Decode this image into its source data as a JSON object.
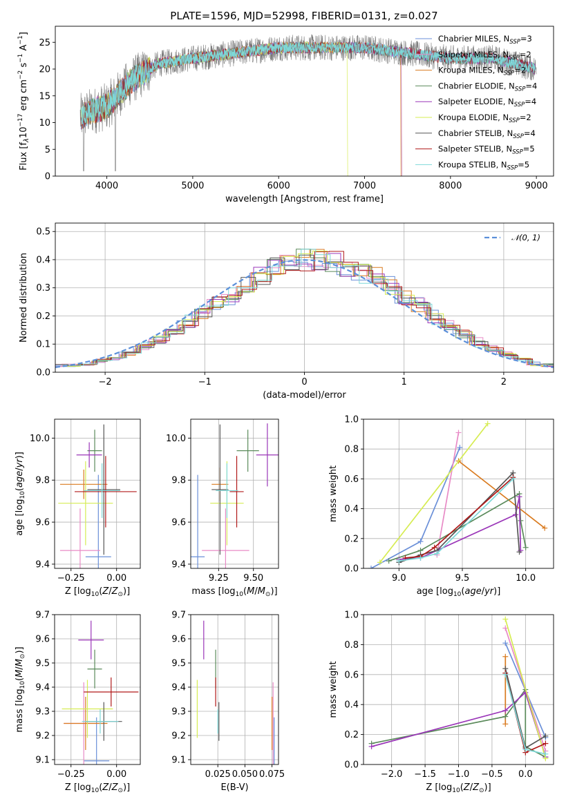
{
  "title": "PLATE=1596, MJD=52998, FIBERID=0131, z=0.027",
  "chart_data": [
    {
      "type": "line",
      "name": "spectrum",
      "xlabel": "wavelength [Angstrom, rest frame]",
      "ylabel": "Flux [f_λ 10^-17 erg cm^-2 s^-1 A^-1]",
      "xlim": [
        3400,
        9200
      ],
      "ylim": [
        0,
        28
      ],
      "xticks": [
        "4000",
        "5000",
        "6000",
        "7000",
        "8000",
        "9000"
      ],
      "yticks": [
        "0",
        "5",
        "10",
        "15",
        "20",
        "25"
      ],
      "grid": false,
      "legend_position": "top-right",
      "legend": [
        {
          "label": "Chabrier MILES, N_SSP=3",
          "color": "#6a8fd8"
        },
        {
          "label": "Salpeter MILES, N_SSP=2",
          "color": "#e88ac6"
        },
        {
          "label": "Kroupa MILES, N_SSP=2",
          "color": "#d97a1e"
        },
        {
          "label": "Chabrier ELODIE, N_SSP=4",
          "color": "#5a8a5a"
        },
        {
          "label": "Salpeter ELODIE, N_SSP=4",
          "color": "#9a35b8"
        },
        {
          "label": "Kroupa ELODIE, N_SSP=2",
          "color": "#d6ec52"
        },
        {
          "label": "Chabrier STELIB, N_SSP=4",
          "color": "#555555"
        },
        {
          "label": "Salpeter STELIB, N_SSP=5",
          "color": "#b01818"
        },
        {
          "label": "Kroupa STELIB, N_SSP=5",
          "color": "#7dd8d8"
        }
      ],
      "data_trend": {
        "x_start": 3690,
        "x_end": 9000,
        "flux_anchors": [
          [
            3690,
            11
          ],
          [
            3800,
            12
          ],
          [
            4000,
            13
          ],
          [
            4300,
            18
          ],
          [
            4600,
            21
          ],
          [
            5000,
            22
          ],
          [
            5500,
            23
          ],
          [
            6000,
            24
          ],
          [
            6500,
            24
          ],
          [
            7000,
            24
          ],
          [
            7500,
            23
          ],
          [
            8000,
            22
          ],
          [
            8500,
            22
          ],
          [
            9000,
            20
          ]
        ]
      }
    },
    {
      "type": "line",
      "name": "residual-distribution",
      "xlabel": "(data-model)/error",
      "ylabel": "Normed distribution",
      "xlim": [
        -2.5,
        2.5
      ],
      "ylim": [
        0,
        0.53
      ],
      "xticks": [
        "−2",
        "−1",
        "0",
        "1",
        "2"
      ],
      "yticks": [
        "0.0",
        "0.1",
        "0.2",
        "0.3",
        "0.4",
        "0.5"
      ],
      "grid": true,
      "legend_label": "N(0,1)",
      "legend_position": "top-right",
      "bins": 35
    },
    {
      "type": "scatter",
      "name": "age-vs-Z",
      "xlabel": "Z [log10(Z/Z⊙)]",
      "ylabel": "age [log10(age/yr)]",
      "xlim": [
        -0.34,
        0.13
      ],
      "ylim": [
        9.38,
        10.09
      ],
      "xticks": [
        -0.25,
        0.0
      ],
      "xticklabels": [
        "−0.25",
        "0.00"
      ],
      "yticks": [
        9.4,
        9.6,
        9.8,
        10.0
      ],
      "yticklabels": [
        "9.4",
        "9.6",
        "9.8",
        "10.0"
      ],
      "points": [
        {
          "x": -0.1,
          "y": 9.435,
          "ex": 0.07,
          "ey": 0.39,
          "color": "#6a8fd8"
        },
        {
          "x": -0.2,
          "y": 9.465,
          "ex": 0.11,
          "ey": 0.2,
          "color": "#e88ac6"
        },
        {
          "x": -0.18,
          "y": 9.78,
          "ex": 0.13,
          "ey": 0.07,
          "color": "#d97a1e"
        },
        {
          "x": -0.12,
          "y": 9.94,
          "ex": 0.04,
          "ey": 0.1,
          "color": "#5a8a5a"
        },
        {
          "x": -0.15,
          "y": 9.92,
          "ex": 0.07,
          "ey": 0.06,
          "color": "#9a35b8"
        },
        {
          "x": -0.17,
          "y": 9.69,
          "ex": 0.15,
          "ey": 0.2,
          "color": "#d6ec52"
        },
        {
          "x": -0.07,
          "y": 9.755,
          "ex": 0.09,
          "ey": 0.31,
          "color": "#555555"
        },
        {
          "x": -0.06,
          "y": 9.745,
          "ex": 0.17,
          "ey": 0.17,
          "color": "#b01818"
        },
        {
          "x": -0.08,
          "y": 9.75,
          "ex": 0.1,
          "ey": 0.13,
          "color": "#7dd8d8"
        }
      ]
    },
    {
      "type": "scatter",
      "name": "age-vs-mass",
      "xlabel": "mass [log10(M/M⊙)]",
      "ylabel": "",
      "xlim": [
        9.05,
        9.68
      ],
      "ylim": [
        9.38,
        10.09
      ],
      "xticks": [
        9.25,
        9.5
      ],
      "xticklabels": [
        "9.25",
        "9.50"
      ],
      "yticks": [
        9.4,
        9.6,
        9.8,
        10.0
      ],
      "yticklabels": [
        "9.4",
        "9.6",
        "9.8",
        "10.0"
      ],
      "points": [
        {
          "x": 9.1,
          "y": 9.435,
          "ex": 0.05,
          "ey": 0.39,
          "color": "#6a8fd8"
        },
        {
          "x": 9.3,
          "y": 9.465,
          "ex": 0.17,
          "ey": 0.2,
          "color": "#e88ac6"
        },
        {
          "x": 9.26,
          "y": 9.78,
          "ex": 0.06,
          "ey": 0.08,
          "color": "#d97a1e"
        },
        {
          "x": 9.46,
          "y": 9.94,
          "ex": 0.08,
          "ey": 0.1,
          "color": "#5a8a5a"
        },
        {
          "x": 9.6,
          "y": 9.92,
          "ex": 0.08,
          "ey": 0.15,
          "color": "#9a35b8"
        },
        {
          "x": 9.31,
          "y": 9.69,
          "ex": 0.12,
          "ey": 0.2,
          "color": "#d6ec52"
        },
        {
          "x": 9.26,
          "y": 9.755,
          "ex": 0.06,
          "ey": 0.31,
          "color": "#555555"
        },
        {
          "x": 9.38,
          "y": 9.745,
          "ex": 0.05,
          "ey": 0.17,
          "color": "#b01818"
        },
        {
          "x": 9.31,
          "y": 9.75,
          "ex": 0.08,
          "ey": 0.13,
          "color": "#7dd8d8"
        }
      ]
    },
    {
      "type": "line",
      "name": "weight-vs-age",
      "xlabel": "age [log10(age/yr)]",
      "ylabel": "mass weight",
      "xlim": [
        8.72,
        10.22
      ],
      "ylim": [
        0,
        1.0
      ],
      "xticks": [
        9.0,
        9.5,
        10.0
      ],
      "xticklabels": [
        "9.0",
        "9.5",
        "10.0"
      ],
      "yticks": [
        0,
        0.2,
        0.4,
        0.6,
        0.8,
        1.0
      ],
      "yticklabels": [
        "0.0",
        "0.2",
        "0.4",
        "0.6",
        "0.8",
        "1.0"
      ],
      "series": [
        {
          "color": "#6a8fd8",
          "points": [
            [
              8.78,
              0.0
            ],
            [
              9.17,
              0.18
            ],
            [
              9.48,
              0.81
            ]
          ]
        },
        {
          "color": "#e88ac6",
          "points": [
            [
              9.3,
              0.09
            ],
            [
              9.47,
              0.91
            ]
          ]
        },
        {
          "color": "#d97a1e",
          "points": [
            [
              9.47,
              0.72
            ],
            [
              10.15,
              0.27
            ]
          ]
        },
        {
          "color": "#5a8a5a",
          "points": [
            [
              8.92,
              0.05
            ],
            [
              9.17,
              0.12
            ],
            [
              9.95,
              0.5
            ],
            [
              9.96,
              0.32
            ],
            [
              10.0,
              0.14
            ]
          ]
        },
        {
          "color": "#9a35b8",
          "points": [
            [
              9.0,
              0.06
            ],
            [
              9.17,
              0.07
            ],
            [
              9.92,
              0.36
            ],
            [
              9.95,
              0.48
            ],
            [
              9.96,
              0.12
            ]
          ]
        },
        {
          "color": "#d6ec52",
          "points": [
            [
              8.85,
              0.04
            ],
            [
              9.7,
              0.97
            ]
          ]
        },
        {
          "color": "#555555",
          "points": [
            [
              9.0,
              0.04
            ],
            [
              9.17,
              0.09
            ],
            [
              9.3,
              0.12
            ],
            [
              9.9,
              0.64
            ],
            [
              9.95,
              0.11
            ]
          ]
        },
        {
          "color": "#b01818",
          "points": [
            [
              9.05,
              0.07
            ],
            [
              9.17,
              0.08
            ],
            [
              9.28,
              0.14
            ],
            [
              9.9,
              0.61
            ]
          ]
        },
        {
          "color": "#7dd8d8",
          "points": [
            [
              9.0,
              0.05
            ],
            [
              9.17,
              0.07
            ],
            [
              9.3,
              0.1
            ],
            [
              9.9,
              0.6
            ]
          ]
        }
      ]
    },
    {
      "type": "scatter",
      "name": "mass-vs-Z",
      "xlabel": "Z [log10(Z/Z⊙)]",
      "ylabel": "mass [log10(M/M⊙)]",
      "xlim": [
        -0.34,
        0.13
      ],
      "ylim": [
        9.08,
        9.7
      ],
      "xticks": [
        -0.25,
        0.0
      ],
      "xticklabels": [
        "−0.25",
        "0.00"
      ],
      "yticks": [
        9.1,
        9.2,
        9.3,
        9.4,
        9.5,
        9.6,
        9.7
      ],
      "yticklabels": [
        "9.1",
        "9.2",
        "9.3",
        "9.4",
        "9.5",
        "9.6",
        "9.7"
      ],
      "points": [
        {
          "x": -0.11,
          "y": 9.095,
          "ex": 0.07,
          "ey": 0.18,
          "color": "#6a8fd8"
        },
        {
          "x": -0.18,
          "y": 9.25,
          "ex": 0.11,
          "ey": 0.17,
          "color": "#e88ac6"
        },
        {
          "x": -0.17,
          "y": 9.25,
          "ex": 0.12,
          "ey": 0.11,
          "color": "#d97a1e"
        },
        {
          "x": -0.12,
          "y": 9.475,
          "ex": 0.04,
          "ey": 0.08,
          "color": "#5a8a5a"
        },
        {
          "x": -0.14,
          "y": 9.595,
          "ex": 0.07,
          "ey": 0.08,
          "color": "#9a35b8"
        },
        {
          "x": -0.16,
          "y": 9.31,
          "ex": 0.14,
          "ey": 0.12,
          "color": "#d6ec52"
        },
        {
          "x": -0.07,
          "y": 9.258,
          "ex": 0.1,
          "ey": 0.08,
          "color": "#555555"
        },
        {
          "x": -0.03,
          "y": 9.38,
          "ex": 0.15,
          "ey": 0.06,
          "color": "#b01818"
        },
        {
          "x": -0.09,
          "y": 9.258,
          "ex": 0.1,
          "ey": 0.05,
          "color": "#7dd8d8"
        }
      ]
    },
    {
      "type": "scatter",
      "name": "mass-vs-ebv",
      "xlabel": "E(B-V)",
      "ylabel": "",
      "xlim": [
        0.0,
        0.081
      ],
      "ylim": [
        9.08,
        9.7
      ],
      "xticks": [
        0.025,
        0.05,
        0.075
      ],
      "xticklabels": [
        "0.025",
        "0.050",
        "0.075"
      ],
      "yticks": [
        9.1,
        9.2,
        9.3,
        9.4,
        9.5,
        9.6,
        9.7
      ],
      "yticklabels": [
        "9.1",
        "9.2",
        "9.3",
        "9.4",
        "9.5",
        "9.6",
        "9.7"
      ],
      "points": [
        {
          "x": 0.077,
          "y": 9.095,
          "ex": 0,
          "ey": 0.18,
          "color": "#6a8fd8"
        },
        {
          "x": 0.076,
          "y": 9.25,
          "ex": 0,
          "ey": 0.17,
          "color": "#e88ac6"
        },
        {
          "x": 0.075,
          "y": 9.25,
          "ex": 0,
          "ey": 0.11,
          "color": "#d97a1e"
        },
        {
          "x": 0.023,
          "y": 9.475,
          "ex": 0,
          "ey": 0.08,
          "color": "#5a8a5a"
        },
        {
          "x": 0.012,
          "y": 9.595,
          "ex": 0,
          "ey": 0.08,
          "color": "#9a35b8"
        },
        {
          "x": 0.006,
          "y": 9.31,
          "ex": 0,
          "ey": 0.12,
          "color": "#d6ec52"
        },
        {
          "x": 0.026,
          "y": 9.258,
          "ex": 0,
          "ey": 0.08,
          "color": "#555555"
        },
        {
          "x": 0.023,
          "y": 9.38,
          "ex": 0,
          "ey": 0.06,
          "color": "#b01818"
        },
        {
          "x": 0.025,
          "y": 9.258,
          "ex": 0,
          "ey": 0.05,
          "color": "#7dd8d8"
        }
      ]
    },
    {
      "type": "line",
      "name": "weight-vs-Z",
      "xlabel": "Z [log10(Z/Z⊙)]",
      "ylabel": "mass weight",
      "xlim": [
        -2.42,
        0.42
      ],
      "ylim": [
        0,
        1.0
      ],
      "xticks": [
        -2.0,
        -1.5,
        -1.0,
        -0.5,
        0.0
      ],
      "xticklabels": [
        "−2.0",
        "−1.5",
        "−1.0",
        "−0.5",
        "0.0"
      ],
      "yticks": [
        0,
        0.2,
        0.4,
        0.6,
        0.8,
        1.0
      ],
      "yticklabels": [
        "0.0",
        "0.2",
        "0.4",
        "0.6",
        "0.8",
        "1.0"
      ],
      "series": [
        {
          "color": "#6a8fd8",
          "points": [
            [
              -0.3,
              0.81
            ],
            [
              0.3,
              0.18
            ]
          ]
        },
        {
          "color": "#e88ac6",
          "points": [
            [
              -0.3,
              0.91
            ],
            [
              0.3,
              0.09
            ]
          ]
        },
        {
          "color": "#d97a1e",
          "points": [
            [
              -0.3,
              0.72
            ],
            [
              -0.3,
              0.27
            ]
          ]
        },
        {
          "color": "#5a8a5a",
          "points": [
            [
              -2.3,
              0.14
            ],
            [
              -0.3,
              0.32
            ],
            [
              0.0,
              0.5
            ],
            [
              0.0,
              0.12
            ],
            [
              0.3,
              0.05
            ]
          ]
        },
        {
          "color": "#9a35b8",
          "points": [
            [
              -2.3,
              0.12
            ],
            [
              -0.3,
              0.36
            ],
            [
              0.0,
              0.48
            ],
            [
              0.3,
              0.05
            ]
          ]
        },
        {
          "color": "#d6ec52",
          "points": [
            [
              -0.3,
              0.97
            ],
            [
              0.3,
              0.04
            ]
          ]
        },
        {
          "color": "#555555",
          "points": [
            [
              -0.3,
              0.64
            ],
            [
              0.0,
              0.11
            ],
            [
              0.3,
              0.19
            ]
          ]
        },
        {
          "color": "#b01818",
          "points": [
            [
              -0.3,
              0.61
            ],
            [
              0.0,
              0.08
            ],
            [
              0.3,
              0.14
            ]
          ]
        },
        {
          "color": "#7dd8d8",
          "points": [
            [
              -0.3,
              0.6
            ],
            [
              0.0,
              0.1
            ],
            [
              0.3,
              0.07
            ]
          ]
        }
      ]
    }
  ]
}
